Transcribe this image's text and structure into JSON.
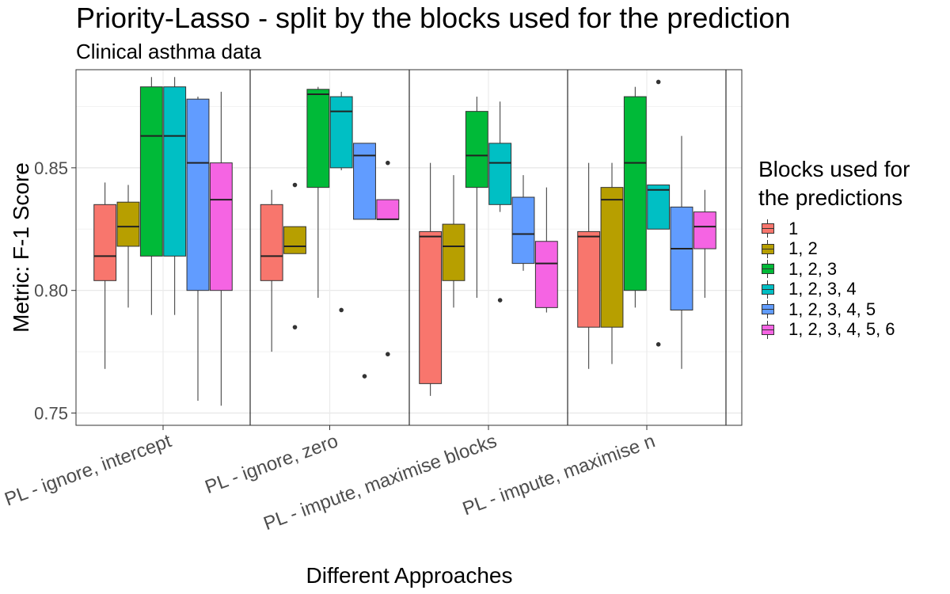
{
  "chart_data": {
    "type": "boxplot",
    "title": "Priority-Lasso - split by the blocks used for the prediction",
    "subtitle": "Clinical asthma data",
    "xlabel": "Different Approaches",
    "ylabel": "Metric: F-1 Score",
    "ylim": [
      0.745,
      0.89
    ],
    "yticks": [
      0.75,
      0.8,
      0.85
    ],
    "ytick_labels": [
      "0.75",
      "0.80",
      "0.85"
    ],
    "grid": true,
    "legend_title": "Blocks used for the predictions",
    "legend_title_lines": [
      "Blocks used for",
      "the predictions"
    ],
    "legend_position": "right",
    "series": [
      {
        "name": "1",
        "color": "#F8766D"
      },
      {
        "name": "1, 2",
        "color": "#B79F00"
      },
      {
        "name": "1, 2, 3",
        "color": "#00BA38"
      },
      {
        "name": "1, 2, 3, 4",
        "color": "#00BFC4"
      },
      {
        "name": "1, 2, 3, 4, 5",
        "color": "#619CFF"
      },
      {
        "name": "1, 2, 3, 4, 5, 6",
        "color": "#F564E3"
      }
    ],
    "categories": [
      "PL - ignore, intercept",
      "PL - ignore, zero",
      "PL - impute, maximise blocks",
      "PL - impute, maximise n"
    ],
    "boxes": [
      [
        {
          "min": 0.768,
          "q1": 0.804,
          "median": 0.814,
          "q3": 0.835,
          "max": 0.844,
          "outliers": []
        },
        {
          "min": 0.793,
          "q1": 0.818,
          "median": 0.826,
          "q3": 0.836,
          "max": 0.843,
          "outliers": []
        },
        {
          "min": 0.79,
          "q1": 0.814,
          "median": 0.863,
          "q3": 0.883,
          "max": 0.887,
          "outliers": []
        },
        {
          "min": 0.79,
          "q1": 0.814,
          "median": 0.863,
          "q3": 0.883,
          "max": 0.887,
          "outliers": []
        },
        {
          "min": 0.755,
          "q1": 0.8,
          "median": 0.852,
          "q3": 0.878,
          "max": 0.879,
          "outliers": []
        },
        {
          "min": 0.753,
          "q1": 0.8,
          "median": 0.837,
          "q3": 0.852,
          "max": 0.881,
          "outliers": []
        }
      ],
      [
        {
          "min": 0.775,
          "q1": 0.804,
          "median": 0.814,
          "q3": 0.835,
          "max": 0.841,
          "outliers": []
        },
        {
          "min": 0.815,
          "q1": 0.815,
          "median": 0.818,
          "q3": 0.826,
          "max": 0.826,
          "outliers": [
            0.843,
            0.785
          ]
        },
        {
          "min": 0.797,
          "q1": 0.842,
          "median": 0.88,
          "q3": 0.882,
          "max": 0.883,
          "outliers": []
        },
        {
          "min": 0.849,
          "q1": 0.85,
          "median": 0.873,
          "q3": 0.879,
          "max": 0.881,
          "outliers": [
            0.792
          ]
        },
        {
          "min": 0.829,
          "q1": 0.829,
          "median": 0.855,
          "q3": 0.86,
          "max": 0.86,
          "outliers": [
            0.765
          ]
        },
        {
          "min": 0.829,
          "q1": 0.829,
          "median": 0.829,
          "q3": 0.837,
          "max": 0.837,
          "outliers": [
            0.852,
            0.774
          ]
        }
      ],
      [
        {
          "min": 0.757,
          "q1": 0.762,
          "median": 0.822,
          "q3": 0.824,
          "max": 0.852,
          "outliers": []
        },
        {
          "min": 0.793,
          "q1": 0.804,
          "median": 0.818,
          "q3": 0.827,
          "max": 0.847,
          "outliers": []
        },
        {
          "min": 0.797,
          "q1": 0.842,
          "median": 0.855,
          "q3": 0.873,
          "max": 0.879,
          "outliers": []
        },
        {
          "min": 0.832,
          "q1": 0.835,
          "median": 0.852,
          "q3": 0.86,
          "max": 0.877,
          "outliers": [
            0.796
          ]
        },
        {
          "min": 0.808,
          "q1": 0.811,
          "median": 0.823,
          "q3": 0.838,
          "max": 0.847,
          "outliers": []
        },
        {
          "min": 0.791,
          "q1": 0.793,
          "median": 0.811,
          "q3": 0.82,
          "max": 0.842,
          "outliers": []
        }
      ],
      [
        {
          "min": 0.768,
          "q1": 0.785,
          "median": 0.822,
          "q3": 0.824,
          "max": 0.852,
          "outliers": []
        },
        {
          "min": 0.77,
          "q1": 0.785,
          "median": 0.837,
          "q3": 0.842,
          "max": 0.852,
          "outliers": []
        },
        {
          "min": 0.793,
          "q1": 0.8,
          "median": 0.852,
          "q3": 0.879,
          "max": 0.883,
          "outliers": []
        },
        {
          "min": 0.825,
          "q1": 0.825,
          "median": 0.841,
          "q3": 0.843,
          "max": 0.843,
          "outliers": [
            0.885,
            0.778
          ]
        },
        {
          "min": 0.768,
          "q1": 0.792,
          "median": 0.817,
          "q3": 0.834,
          "max": 0.863,
          "outliers": []
        },
        {
          "min": 0.797,
          "q1": 0.817,
          "median": 0.826,
          "q3": 0.832,
          "max": 0.841,
          "outliers": []
        }
      ]
    ]
  }
}
